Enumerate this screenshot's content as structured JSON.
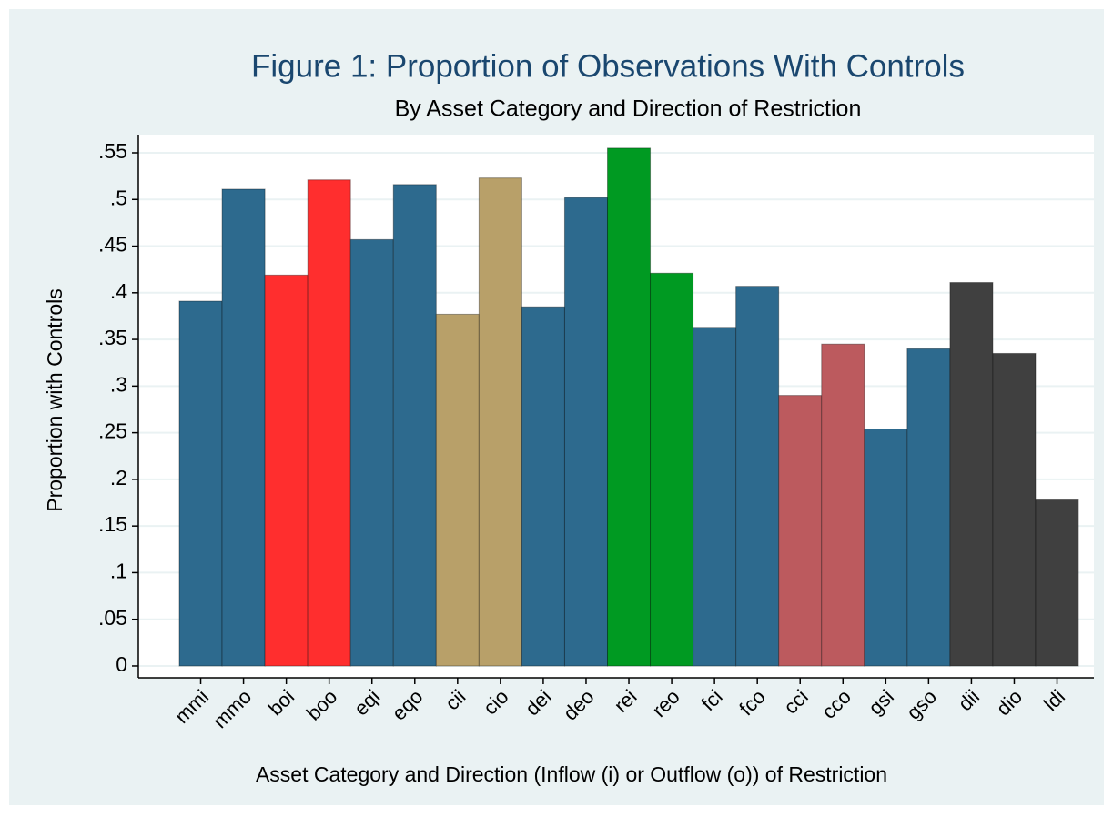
{
  "chart_data": {
    "type": "bar",
    "title": "Figure 1: Proportion of Observations With Controls",
    "subtitle": "By Asset Category and Direction of Restriction",
    "y_label": "Proportion with Controls",
    "x_label": "Asset Category and Direction (Inflow (i) or Outflow (o)) of Restriction",
    "categories": [
      "mmi",
      "mmo",
      "boi",
      "boo",
      "eqi",
      "eqo",
      "cii",
      "cio",
      "dei",
      "deo",
      "rei",
      "reo",
      "fci",
      "fco",
      "cci",
      "cco",
      "gsi",
      "gso",
      "dii",
      "dio",
      "ldi"
    ],
    "values": [
      0.391,
      0.511,
      0.419,
      0.521,
      0.457,
      0.516,
      0.377,
      0.523,
      0.385,
      0.502,
      0.555,
      0.421,
      0.363,
      0.407,
      0.29,
      0.345,
      0.254,
      0.34,
      0.411,
      0.335,
      0.178
    ],
    "colors": [
      "#2d6a8e",
      "#2d6a8e",
      "#ff2e2e",
      "#ff2e2e",
      "#2d6a8e",
      "#2d6a8e",
      "#b8a069",
      "#b8a069",
      "#2d6a8e",
      "#2d6a8e",
      "#009a22",
      "#009a22",
      "#2d6a8e",
      "#2d6a8e",
      "#bc5a5e",
      "#bc5a5e",
      "#2d6a8e",
      "#2d6a8e",
      "#404040",
      "#404040",
      "#404040"
    ],
    "ylim": [
      -0.0127,
      0.5695
    ],
    "yticks": [
      0,
      {
        "value": 0.05,
        "label": ".05"
      },
      {
        "value": 0.1,
        "label": ".1"
      },
      {
        "value": 0.15,
        "label": ".15"
      },
      {
        "value": 0.2,
        "label": ".2"
      },
      {
        "value": 0.25,
        "label": ".25"
      },
      {
        "value": 0.3,
        "label": ".3"
      },
      {
        "value": 0.35,
        "label": ".35"
      },
      {
        "value": 0.4,
        "label": ".4"
      },
      {
        "value": 0.45,
        "label": ".45"
      },
      {
        "value": 0.5,
        "label": ".5"
      },
      {
        "value": 0.55,
        "label": ".55"
      }
    ],
    "grid": true
  }
}
